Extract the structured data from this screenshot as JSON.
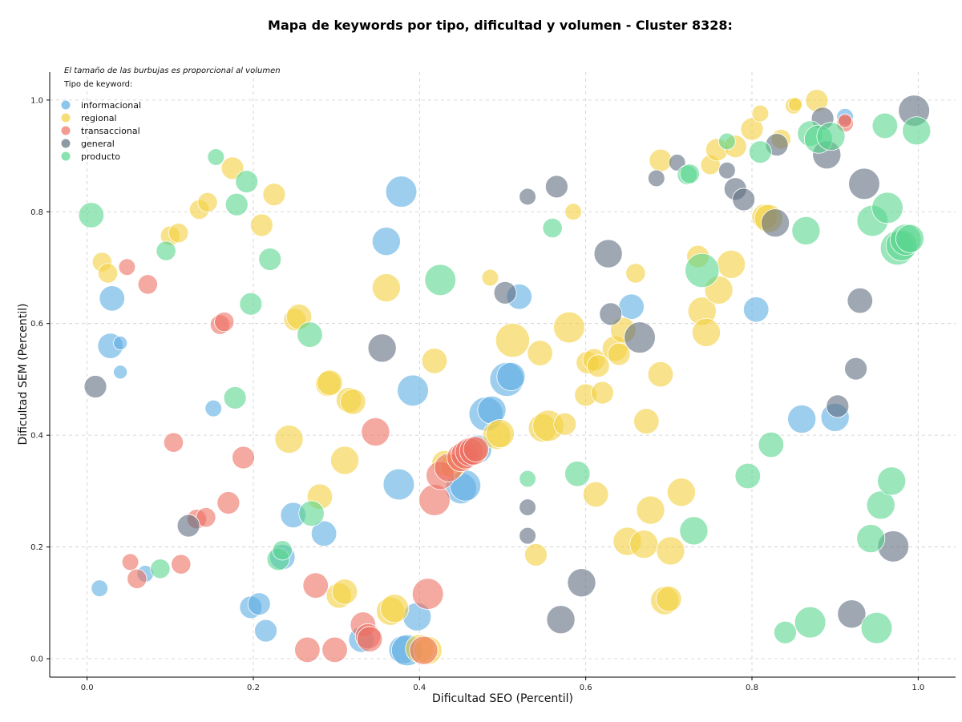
{
  "chart_data": {
    "type": "scatter",
    "title": "Mapa de keywords por tipo, dificultad y volumen - Cluster 8328:",
    "xlabel": "Dificultad SEO (Percentil)",
    "ylabel": "Dificultad SEM (Percentil)",
    "xlim": [
      -0.045,
      1.045
    ],
    "ylim": [
      -0.033,
      1.05
    ],
    "xticks": [
      "0.0",
      "0.2",
      "0.4",
      "0.6",
      "0.8",
      "1.0"
    ],
    "yticks": [
      "0.0",
      "0.2",
      "0.4",
      "0.6",
      "0.8",
      "1.0"
    ],
    "grid": true,
    "legend_placement": "top-left",
    "note": "El tamaño de las burbujas es proporcional al volumen",
    "legend_title": "Tipo de keyword:",
    "series": [
      {
        "name": "informacional",
        "color": "#5dade2",
        "points": [
          [
            0.03,
            0.645,
            3
          ],
          [
            0.028,
            0.56,
            3
          ],
          [
            0.04,
            0.565,
            1
          ],
          [
            0.04,
            0.513,
            1
          ],
          [
            0.015,
            0.126,
            1.5
          ],
          [
            0.152,
            0.448,
            1.5
          ],
          [
            0.07,
            0.152,
            1.5
          ],
          [
            0.197,
            0.092,
            2.5
          ],
          [
            0.207,
            0.098,
            2.5
          ],
          [
            0.215,
            0.05,
            2.5
          ],
          [
            0.235,
            0.182,
            3
          ],
          [
            0.248,
            0.257,
            3
          ],
          [
            0.285,
            0.224,
            3
          ],
          [
            0.36,
            0.747,
            3.5
          ],
          [
            0.378,
            0.836,
            4
          ],
          [
            0.375,
            0.312,
            4
          ],
          [
            0.392,
            0.48,
            4
          ],
          [
            0.397,
            0.075,
            3.5
          ],
          [
            0.38,
            0.016,
            3.5
          ],
          [
            0.385,
            0.015,
            4
          ],
          [
            0.33,
            0.034,
            3
          ],
          [
            0.45,
            0.305,
            4
          ],
          [
            0.455,
            0.31,
            4
          ],
          [
            0.47,
            0.375,
            3.5
          ],
          [
            0.48,
            0.438,
            4.5
          ],
          [
            0.487,
            0.445,
            3.5
          ],
          [
            0.505,
            0.5,
            4.5
          ],
          [
            0.51,
            0.505,
            3.5
          ],
          [
            0.52,
            0.648,
            3
          ],
          [
            0.655,
            0.63,
            3
          ],
          [
            0.805,
            0.625,
            3
          ],
          [
            0.86,
            0.429,
            3.5
          ],
          [
            0.9,
            0.432,
            3.5
          ],
          [
            0.912,
            0.97,
            1.5
          ]
        ]
      },
      {
        "name": "regional",
        "color": "#f4d03f",
        "points": [
          [
            0.018,
            0.71,
            2
          ],
          [
            0.025,
            0.69,
            2
          ],
          [
            0.135,
            0.804,
            2
          ],
          [
            0.145,
            0.817,
            2
          ],
          [
            0.1,
            0.757,
            2
          ],
          [
            0.11,
            0.762,
            2
          ],
          [
            0.175,
            0.878,
            2.5
          ],
          [
            0.21,
            0.776,
            2.5
          ],
          [
            0.225,
            0.831,
            2.5
          ],
          [
            0.25,
            0.607,
            2.5
          ],
          [
            0.255,
            0.612,
            3
          ],
          [
            0.243,
            0.393,
            3.5
          ],
          [
            0.29,
            0.492,
            3
          ],
          [
            0.292,
            0.494,
            3
          ],
          [
            0.31,
            0.355,
            3.5
          ],
          [
            0.315,
            0.463,
            3
          ],
          [
            0.32,
            0.46,
            3
          ],
          [
            0.28,
            0.29,
            3
          ],
          [
            0.303,
            0.113,
            3
          ],
          [
            0.31,
            0.12,
            3
          ],
          [
            0.36,
            0.664,
            3.5
          ],
          [
            0.365,
            0.085,
            3.5
          ],
          [
            0.37,
            0.09,
            3.5
          ],
          [
            0.4,
            0.018,
            3.5
          ],
          [
            0.41,
            0.015,
            3.5
          ],
          [
            0.418,
            0.533,
            3
          ],
          [
            0.43,
            0.35,
            3
          ],
          [
            0.44,
            0.345,
            3
          ],
          [
            0.465,
            0.37,
            3
          ],
          [
            0.485,
            0.682,
            1.5
          ],
          [
            0.493,
            0.4,
            3.5
          ],
          [
            0.497,
            0.403,
            3.5
          ],
          [
            0.512,
            0.57,
            4.5
          ],
          [
            0.545,
            0.547,
            3
          ],
          [
            0.548,
            0.413,
            3.5
          ],
          [
            0.555,
            0.417,
            4
          ],
          [
            0.575,
            0.42,
            2.5
          ],
          [
            0.54,
            0.186,
            2.5
          ],
          [
            0.58,
            0.593,
            4
          ],
          [
            0.585,
            0.8,
            1.5
          ],
          [
            0.6,
            0.472,
            2.5
          ],
          [
            0.602,
            0.53,
            2.5
          ],
          [
            0.61,
            0.535,
            2.5
          ],
          [
            0.615,
            0.524,
            2.5
          ],
          [
            0.62,
            0.476,
            2.5
          ],
          [
            0.612,
            0.294,
            3
          ],
          [
            0.635,
            0.555,
            3
          ],
          [
            0.64,
            0.545,
            2.5
          ],
          [
            0.645,
            0.588,
            3
          ],
          [
            0.66,
            0.69,
            2
          ],
          [
            0.65,
            0.21,
            3.5
          ],
          [
            0.67,
            0.205,
            3.5
          ],
          [
            0.673,
            0.425,
            3
          ],
          [
            0.678,
            0.266,
            3.5
          ],
          [
            0.69,
            0.892,
            2.5
          ],
          [
            0.69,
            0.509,
            3
          ],
          [
            0.695,
            0.104,
            3.5
          ],
          [
            0.7,
            0.107,
            3
          ],
          [
            0.702,
            0.193,
            3.5
          ],
          [
            0.715,
            0.298,
            3.5
          ],
          [
            0.75,
            0.884,
            2
          ],
          [
            0.758,
            0.911,
            2.5
          ],
          [
            0.735,
            0.72,
            2.5
          ],
          [
            0.74,
            0.622,
            3.5
          ],
          [
            0.745,
            0.584,
            3.5
          ],
          [
            0.76,
            0.66,
            3.5
          ],
          [
            0.775,
            0.706,
            3.5
          ],
          [
            0.78,
            0.917,
            2.5
          ],
          [
            0.8,
            0.948,
            2.5
          ],
          [
            0.81,
            0.976,
            1.5
          ],
          [
            0.815,
            0.791,
            3
          ],
          [
            0.82,
            0.788,
            3.5
          ],
          [
            0.835,
            0.93,
            2
          ],
          [
            0.85,
            0.99,
            1.5
          ],
          [
            0.852,
            0.992,
            1
          ],
          [
            0.878,
            0.999,
            2.5
          ]
        ]
      },
      {
        "name": "transaccional",
        "color": "#ec7063",
        "points": [
          [
            0.048,
            0.701,
            1.5
          ],
          [
            0.073,
            0.67,
            2
          ],
          [
            0.052,
            0.173,
            1.5
          ],
          [
            0.06,
            0.143,
            2
          ],
          [
            0.113,
            0.169,
            2
          ],
          [
            0.104,
            0.387,
            2
          ],
          [
            0.132,
            0.25,
            2
          ],
          [
            0.143,
            0.253,
            2
          ],
          [
            0.16,
            0.598,
            2
          ],
          [
            0.165,
            0.603,
            2
          ],
          [
            0.17,
            0.279,
            2.5
          ],
          [
            0.188,
            0.36,
            2.5
          ],
          [
            0.265,
            0.016,
            3
          ],
          [
            0.275,
            0.131,
            3
          ],
          [
            0.298,
            0.016,
            3
          ],
          [
            0.332,
            0.061,
            3
          ],
          [
            0.338,
            0.04,
            3
          ],
          [
            0.34,
            0.035,
            3
          ],
          [
            0.347,
            0.406,
            3.5
          ],
          [
            0.41,
            0.116,
            4
          ],
          [
            0.418,
            0.284,
            4
          ],
          [
            0.425,
            0.328,
            3.5
          ],
          [
            0.435,
            0.342,
            3.5
          ],
          [
            0.45,
            0.36,
            3.5
          ],
          [
            0.455,
            0.365,
            3.5
          ],
          [
            0.46,
            0.37,
            3.5
          ],
          [
            0.465,
            0.372,
            3.5
          ],
          [
            0.468,
            0.375,
            3
          ],
          [
            0.405,
            0.015,
            3.5
          ],
          [
            0.912,
            0.958,
            1.5
          ],
          [
            0.912,
            0.963,
            1
          ]
        ]
      },
      {
        "name": "general",
        "color": "#5d6d7e",
        "points": [
          [
            0.01,
            0.487,
            2.5
          ],
          [
            0.122,
            0.238,
            2.5
          ],
          [
            0.355,
            0.556,
            3.5
          ],
          [
            0.503,
            0.655,
            2.5
          ],
          [
            0.53,
            0.827,
            1.5
          ],
          [
            0.53,
            0.271,
            1.5
          ],
          [
            0.53,
            0.22,
            1.5
          ],
          [
            0.565,
            0.845,
            2.5
          ],
          [
            0.57,
            0.07,
            3.5
          ],
          [
            0.595,
            0.136,
            3.5
          ],
          [
            0.627,
            0.725,
            3.5
          ],
          [
            0.63,
            0.617,
            2.5
          ],
          [
            0.665,
            0.575,
            4
          ],
          [
            0.685,
            0.86,
            1.5
          ],
          [
            0.71,
            0.888,
            1.5
          ],
          [
            0.77,
            0.874,
            1.5
          ],
          [
            0.78,
            0.841,
            2.5
          ],
          [
            0.79,
            0.822,
            2.5
          ],
          [
            0.83,
            0.92,
            2.5
          ],
          [
            0.828,
            0.78,
            3.5
          ],
          [
            0.885,
            0.967,
            2.5
          ],
          [
            0.89,
            0.902,
            3.5
          ],
          [
            0.903,
            0.452,
            2.5
          ],
          [
            0.925,
            0.519,
            2.5
          ],
          [
            0.93,
            0.641,
            3
          ],
          [
            0.935,
            0.85,
            4
          ],
          [
            0.92,
            0.08,
            3.5
          ],
          [
            0.97,
            0.201,
            4
          ],
          [
            0.995,
            0.981,
            4
          ]
        ]
      },
      {
        "name": "producto",
        "color": "#58d68d",
        "points": [
          [
            0.005,
            0.794,
            3
          ],
          [
            0.095,
            0.73,
            2
          ],
          [
            0.155,
            0.898,
            1.5
          ],
          [
            0.18,
            0.813,
            2.5
          ],
          [
            0.192,
            0.854,
            2.5
          ],
          [
            0.197,
            0.635,
            2.5
          ],
          [
            0.22,
            0.715,
            2.5
          ],
          [
            0.178,
            0.467,
            2.5
          ],
          [
            0.268,
            0.58,
            3
          ],
          [
            0.27,
            0.26,
            3
          ],
          [
            0.23,
            0.178,
            2.5
          ],
          [
            0.235,
            0.194,
            2
          ],
          [
            0.088,
            0.161,
            2
          ],
          [
            0.425,
            0.678,
            4
          ],
          [
            0.53,
            0.322,
            1.5
          ],
          [
            0.56,
            0.771,
            2
          ],
          [
            0.59,
            0.331,
            3
          ],
          [
            0.722,
            0.866,
            2
          ],
          [
            0.725,
            0.868,
            2
          ],
          [
            0.73,
            0.229,
            3.5
          ],
          [
            0.74,
            0.695,
            4.5
          ],
          [
            0.77,
            0.926,
            1.5
          ],
          [
            0.795,
            0.327,
            3
          ],
          [
            0.81,
            0.907,
            2.5
          ],
          [
            0.823,
            0.383,
            3
          ],
          [
            0.84,
            0.047,
            2.5
          ],
          [
            0.865,
            0.766,
            3.5
          ],
          [
            0.87,
            0.065,
            4
          ],
          [
            0.87,
            0.94,
            3
          ],
          [
            0.88,
            0.93,
            3.5
          ],
          [
            0.895,
            0.935,
            3.5
          ],
          [
            0.945,
            0.784,
            4
          ],
          [
            0.943,
            0.215,
            3.5
          ],
          [
            0.955,
            0.275,
            3.5
          ],
          [
            0.95,
            0.055,
            4
          ],
          [
            0.96,
            0.954,
            3
          ],
          [
            0.963,
            0.807,
            4
          ],
          [
            0.968,
            0.318,
            3.5
          ],
          [
            0.975,
            0.735,
            4.5
          ],
          [
            0.98,
            0.74,
            4
          ],
          [
            0.985,
            0.75,
            4
          ],
          [
            0.99,
            0.752,
            3.5
          ],
          [
            0.998,
            0.945,
            3.5
          ]
        ]
      }
    ]
  }
}
